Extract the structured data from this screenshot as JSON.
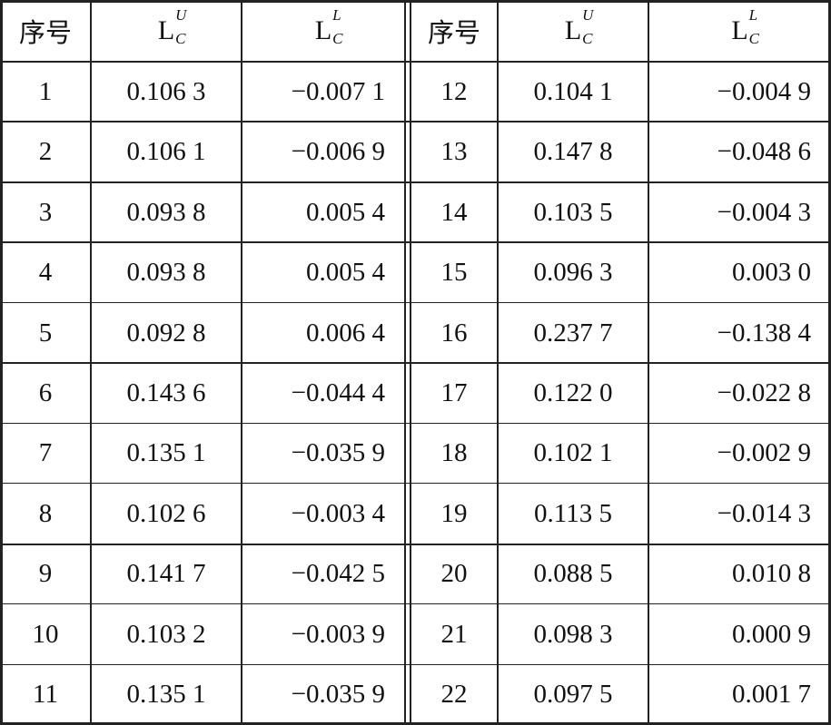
{
  "table": {
    "header": [
      "序号",
      {
        "main": "L",
        "sup": "U",
        "sub": "C"
      },
      {
        "main": "L",
        "sup": "L",
        "sub": "C"
      },
      "序号",
      {
        "main": "L",
        "sup": "U",
        "sub": "C"
      },
      {
        "main": "L",
        "sup": "L",
        "sub": "C"
      }
    ],
    "rows": [
      [
        "1",
        "0.106 3",
        "−0.007 1",
        "12",
        "0.104 1",
        "−0.004 9"
      ],
      [
        "2",
        "0.106 1",
        "−0.006 9",
        "13",
        "0.147 8",
        "−0.048 6"
      ],
      [
        "3",
        "0.093 8",
        "0.005 4",
        "14",
        "0.103 5",
        "−0.004 3"
      ],
      [
        "4",
        "0.093 8",
        "0.005 4",
        "15",
        "0.096 3",
        "0.003 0"
      ],
      [
        "5",
        "0.092 8",
        "0.006 4",
        "16",
        "0.237 7",
        "−0.138 4"
      ],
      [
        "6",
        "0.143 6",
        "−0.044 4",
        "17",
        "0.122 0",
        "−0.022 8"
      ],
      [
        "7",
        "0.135 1",
        "−0.035 9",
        "18",
        "0.102 1",
        "−0.002 9"
      ],
      [
        "8",
        "0.102 6",
        "−0.003 4",
        "19",
        "0.113 5",
        "−0.014 3"
      ],
      [
        "9",
        "0.141 7",
        "−0.042 5",
        "20",
        "0.088 5",
        "0.010 8"
      ],
      [
        "10",
        "0.103 2",
        "−0.003 9",
        "21",
        "0.098 3",
        "0.000 9"
      ],
      [
        "11",
        "0.135 1",
        "−0.035 9",
        "22",
        "0.097 5",
        "0.001 7"
      ]
    ]
  }
}
